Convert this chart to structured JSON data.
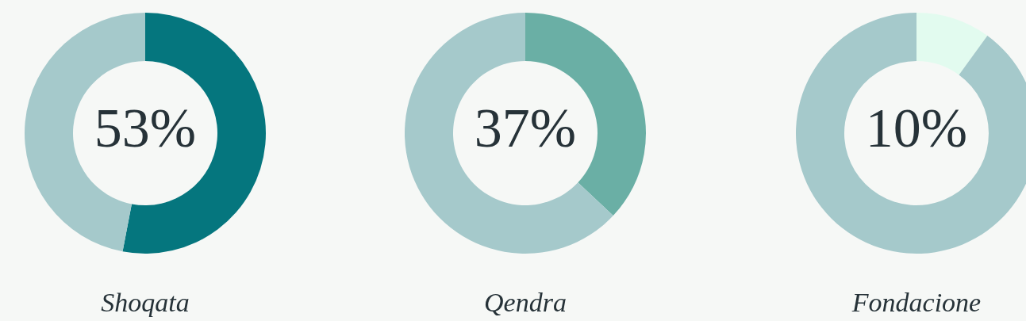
{
  "chart_data": [
    {
      "type": "donut",
      "title": "Shoqata",
      "categories": [
        null,
        null
      ],
      "values": [
        53,
        47
      ],
      "colors": [
        "#05767e",
        "#a5c9cb"
      ],
      "value_labels": [
        "53%",
        null
      ]
    },
    {
      "type": "donut",
      "title": "Qendra",
      "categories": [
        null,
        null
      ],
      "values": [
        37,
        63
      ],
      "colors": [
        "#6aafa5",
        "#a5c9cb"
      ],
      "value_labels": [
        "37%",
        null
      ]
    },
    {
      "type": "donut",
      "title": "Fondacione",
      "categories": [
        null,
        null
      ],
      "values": [
        10,
        90
      ],
      "colors": [
        "#e2fbef",
        "#a5c9cb"
      ],
      "value_labels": [
        "10%",
        null
      ]
    }
  ]
}
